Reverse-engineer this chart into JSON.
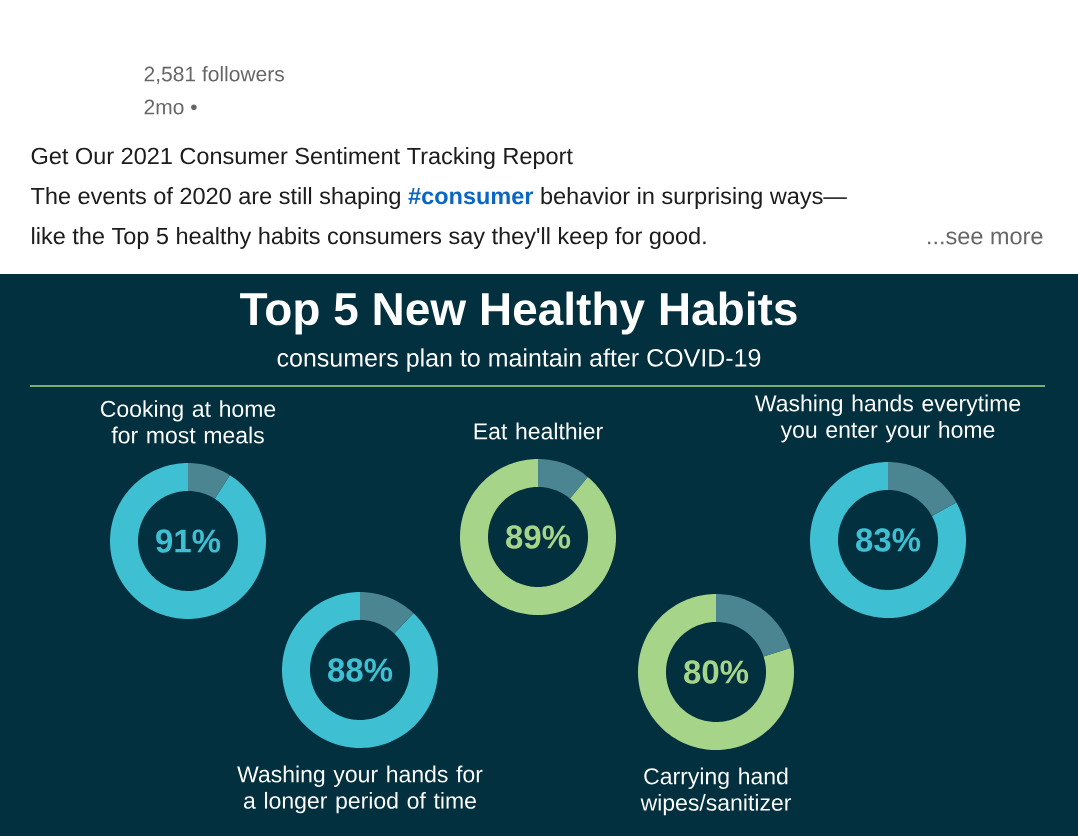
{
  "chart_data": [
    {
      "type": "other",
      "title": "Top 5 New Healthy Habits",
      "subtitle": "consumers plan to maintain after COVID-19",
      "annotations": [
        "2,581 followers",
        "2mo •",
        "Get Our 2021 Consumer Sentiment Tracking Report",
        "The events of 2020 are still shaping",
        "#consumer",
        "behavior in surprising ways—",
        "like the Top 5 healthy habits consumers say they'll keep for good.",
        "...see more"
      ]
    },
    {
      "type": "donut",
      "title": "Cooking at home for most meals",
      "categories": [
        null,
        null
      ],
      "values": [
        91,
        9
      ],
      "colors": [
        "#3ec0d2",
        "#4b8592"
      ],
      "value_labels": [
        "91%",
        null
      ]
    },
    {
      "type": "donut",
      "title": "Eat healthier",
      "categories": [
        null,
        null
      ],
      "values": [
        89,
        11
      ],
      "colors": [
        "#a6d58a",
        "#4b8592"
      ],
      "value_labels": [
        "89%",
        null
      ]
    },
    {
      "type": "donut",
      "title": "Washing hands everytime you enter your home",
      "categories": [
        null,
        null
      ],
      "values": [
        83,
        17
      ],
      "colors": [
        "#3ec0d2",
        "#4b8592"
      ],
      "value_labels": [
        "83%",
        null
      ]
    },
    {
      "type": "donut",
      "title": "Washing your hands for a longer period of time",
      "categories": [
        null,
        null
      ],
      "values": [
        88,
        12
      ],
      "colors": [
        "#3ec0d2",
        "#4b8592"
      ],
      "value_labels": [
        "88%",
        null
      ]
    },
    {
      "type": "donut",
      "title": "Carrying hand wipes/sanitizer",
      "categories": [
        null,
        null
      ],
      "values": [
        80,
        20
      ],
      "colors": [
        "#a6d58a",
        "#4b8592"
      ],
      "value_labels": [
        "80%",
        null
      ]
    }
  ]
}
